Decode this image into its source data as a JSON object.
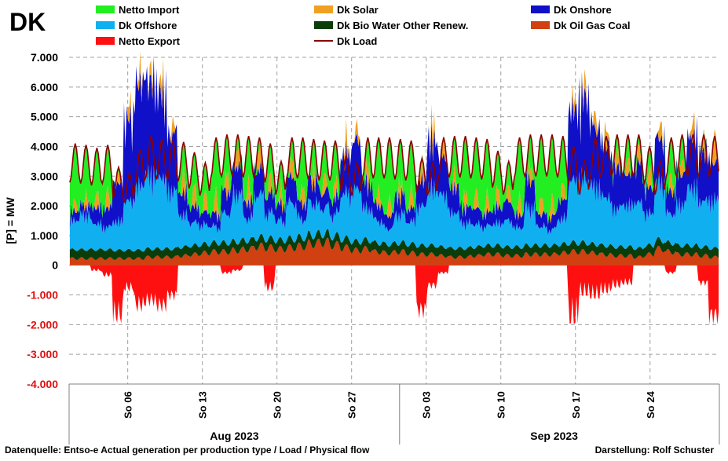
{
  "title": "DK",
  "footer": {
    "source": "Datenquelle: Entso-e  Actual generation per production type   / Load  / Physical flow",
    "credit": "Darstellung: Rolf Schuster"
  },
  "colors": {
    "netto_import": "#22ee22",
    "solar": "#f0a020",
    "onshore": "#1010c8",
    "offshore": "#10b0f0",
    "bio": "#0b3d0b",
    "oil_gas_coal": "#d04010",
    "export": "#ff1010",
    "load": "#8b0000"
  },
  "chart_data": {
    "type": "area",
    "ylabel": "[P]  = MW",
    "ylim": [
      -4000,
      7000
    ],
    "yticks": [
      "7.000",
      "6.000",
      "5.000",
      "4.000",
      "3.000",
      "2.000",
      "1.000",
      "0",
      "-1.000",
      "-2.000",
      "-3.000",
      "-4.000"
    ],
    "ytick_values": [
      7000,
      6000,
      5000,
      4000,
      3000,
      2000,
      1000,
      0,
      -1000,
      -2000,
      -3000,
      -4000
    ],
    "x_start": "2023-08-01",
    "x_end": "2023-09-30",
    "xticks": [
      {
        "label": "So 06",
        "date": "2023-08-06"
      },
      {
        "label": "So 13",
        "date": "2023-08-13"
      },
      {
        "label": "So 20",
        "date": "2023-08-20"
      },
      {
        "label": "So 27",
        "date": "2023-08-27"
      },
      {
        "label": "So 03",
        "date": "2023-09-03"
      },
      {
        "label": "So 10",
        "date": "2023-09-10"
      },
      {
        "label": "So 17",
        "date": "2023-09-17"
      },
      {
        "label": "So 24",
        "date": "2023-09-24"
      }
    ],
    "months": [
      {
        "label": "Aug 2023",
        "start": "2023-08-01",
        "end": "2023-09-01"
      },
      {
        "label": "Sep 2023",
        "start": "2023-09-01",
        "end": "2023-09-30"
      }
    ],
    "grid": true,
    "legend_position": "top",
    "legend": [
      {
        "name": "Netto Import",
        "kind": "area",
        "color_key": "netto_import"
      },
      {
        "name": "Dk Solar",
        "kind": "area",
        "color_key": "solar"
      },
      {
        "name": "Dk Onshore",
        "kind": "area",
        "color_key": "onshore"
      },
      {
        "name": "Dk Offshore",
        "kind": "area",
        "color_key": "offshore"
      },
      {
        "name": "Dk Bio Water Other Renew.",
        "kind": "area",
        "color_key": "bio"
      },
      {
        "name": "Dk Oil Gas Coal",
        "kind": "area",
        "color_key": "oil_gas_coal"
      },
      {
        "name": "Netto Export",
        "kind": "area",
        "color_key": "export"
      },
      {
        "name": "Dk Load",
        "kind": "line",
        "color_key": "load"
      }
    ],
    "approx_daily": {
      "note": "daily approximate ranges read from chart",
      "load_peak": [
        4100,
        4050,
        3950,
        4050,
        3300,
        3100,
        3900,
        4350,
        4250,
        4200,
        4150,
        3800,
        3450,
        4300,
        4400,
        4400,
        4350,
        4300,
        4100,
        3500,
        4300,
        4300,
        4250,
        4200,
        4200,
        3700,
        3450,
        4300,
        4300,
        4300,
        4250,
        4200,
        3600,
        3450,
        4300,
        4350,
        4350,
        4300,
        4250,
        3850,
        3500,
        4300,
        4400,
        4400,
        4400,
        4350,
        4000,
        3500,
        4300,
        4350,
        4400,
        4400,
        4400,
        4000,
        3500,
        4300,
        4400,
        4400,
        4400,
        4350
      ],
      "offshore_mean": [
        900,
        1100,
        800,
        700,
        900,
        1500,
        2000,
        2300,
        2200,
        1800,
        1000,
        700,
        600,
        500,
        900,
        1500,
        700,
        1300,
        800,
        600,
        1100,
        600,
        1000,
        800,
        700,
        1400,
        1600,
        1000,
        700,
        500,
        900,
        700,
        1200,
        1800,
        1600,
        1100,
        800,
        700,
        600,
        700,
        800,
        600,
        1200,
        600,
        500,
        800,
        1900,
        2000,
        1800,
        1500,
        1200,
        1300,
        1400,
        1000,
        1800,
        900,
        1300,
        1800,
        1400,
        1500
      ],
      "onshore_mean": [
        300,
        300,
        500,
        600,
        1200,
        2500,
        3200,
        3000,
        2600,
        1800,
        700,
        500,
        400,
        400,
        700,
        900,
        500,
        800,
        600,
        500,
        800,
        500,
        700,
        500,
        500,
        1200,
        1500,
        800,
        500,
        400,
        600,
        400,
        800,
        1500,
        1200,
        800,
        500,
        500,
        400,
        500,
        600,
        400,
        900,
        400,
        400,
        600,
        2200,
        2500,
        1900,
        1600,
        1300,
        1000,
        1200,
        800,
        1400,
        700,
        1000,
        1600,
        1500,
        1200
      ],
      "solar_peak": [
        400,
        500,
        600,
        700,
        400,
        600,
        600,
        500,
        700,
        500,
        800,
        800,
        700,
        800,
        800,
        700,
        800,
        800,
        700,
        600,
        700,
        700,
        600,
        700,
        600,
        700,
        500,
        700,
        600,
        700,
        600,
        700,
        600,
        700,
        600,
        600,
        600,
        700,
        700,
        700,
        600,
        700,
        600,
        700,
        700,
        600,
        500,
        600,
        600,
        700,
        600,
        600,
        600,
        700,
        600,
        600,
        600,
        700,
        600,
        1200
      ],
      "oil_gas_coal_mean": [
        250,
        250,
        250,
        250,
        250,
        250,
        250,
        300,
        300,
        300,
        350,
        400,
        450,
        500,
        500,
        550,
        600,
        700,
        650,
        600,
        650,
        700,
        800,
        850,
        750,
        650,
        550,
        600,
        500,
        450,
        500,
        450,
        400,
        400,
        350,
        300,
        300,
        350,
        400,
        400,
        350,
        350,
        400,
        400,
        400,
        450,
        500,
        500,
        450,
        400,
        350,
        350,
        300,
        400,
        600,
        500,
        400,
        400,
        350,
        300
      ],
      "bio_mean": [
        300,
        300,
        300,
        300,
        280,
        280,
        280,
        280,
        280,
        280,
        300,
        300,
        300,
        300,
        300,
        300,
        300,
        300,
        300,
        300,
        300,
        300,
        300,
        300,
        300,
        300,
        300,
        300,
        300,
        300,
        300,
        300,
        300,
        300,
        300,
        300,
        300,
        300,
        300,
        300,
        300,
        300,
        300,
        300,
        300,
        300,
        300,
        300,
        300,
        300,
        300,
        300,
        300,
        300,
        300,
        300,
        300,
        300,
        300,
        300
      ],
      "export_min": [
        0,
        0,
        -200,
        -400,
        -2000,
        -900,
        -1600,
        -1400,
        -1600,
        -1200,
        0,
        0,
        0,
        0,
        -300,
        -200,
        0,
        0,
        -900,
        0,
        0,
        0,
        0,
        0,
        0,
        0,
        0,
        0,
        0,
        0,
        0,
        0,
        -1800,
        -800,
        -300,
        0,
        0,
        0,
        0,
        0,
        0,
        0,
        0,
        0,
        0,
        0,
        -2100,
        -1100,
        -1200,
        -1000,
        -800,
        -700,
        0,
        0,
        0,
        -300,
        0,
        0,
        -700,
        -2000
      ]
    }
  }
}
